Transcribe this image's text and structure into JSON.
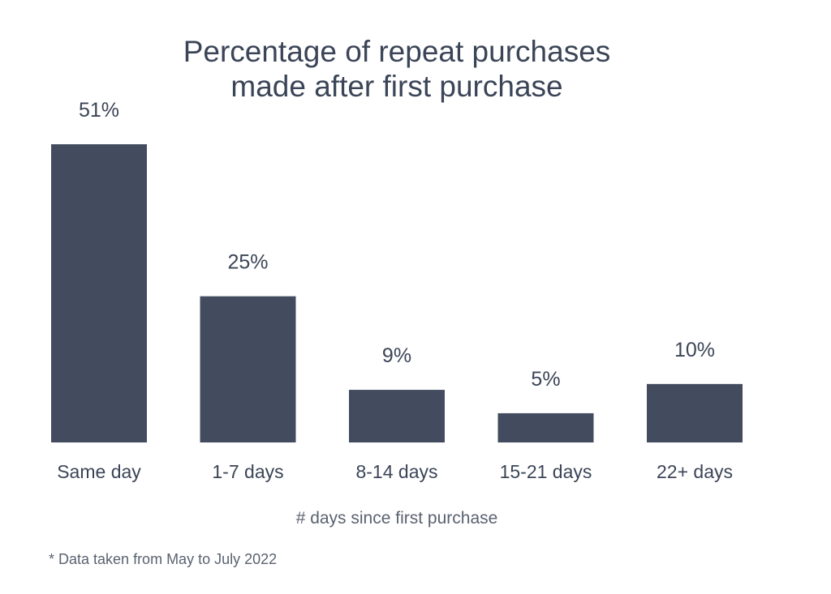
{
  "chart_data": {
    "type": "bar",
    "title_lines": [
      "Percentage of repeat purchases",
      "made after first purchase"
    ],
    "categories": [
      "Same day",
      "1-7 days",
      "8-14 days",
      "15-21 days",
      "22+ days"
    ],
    "values": [
      51,
      25,
      9,
      5,
      10
    ],
    "value_labels": [
      "51%",
      "25%",
      "9%",
      "5%",
      "10%"
    ],
    "xlabel": "# days since first purchase",
    "ylabel": "",
    "ylim": [
      0,
      51
    ],
    "grid": false,
    "bar_color": "#434c5f",
    "text_color": "#3b4557"
  },
  "footnote": "* Data taken from May to July 2022"
}
